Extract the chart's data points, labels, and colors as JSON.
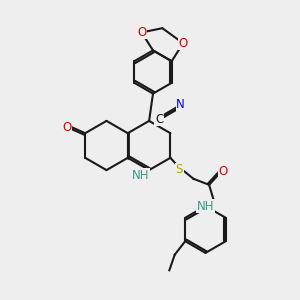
{
  "background_color": "#eeeeee",
  "bond_color": "#1a1a1a",
  "colors": {
    "N": "#0000dd",
    "O": "#dd0000",
    "S": "#aaaa00",
    "NH": "#3a9a8a",
    "C": "#1a1a1a"
  },
  "lw": 1.5,
  "fs": 8.5
}
